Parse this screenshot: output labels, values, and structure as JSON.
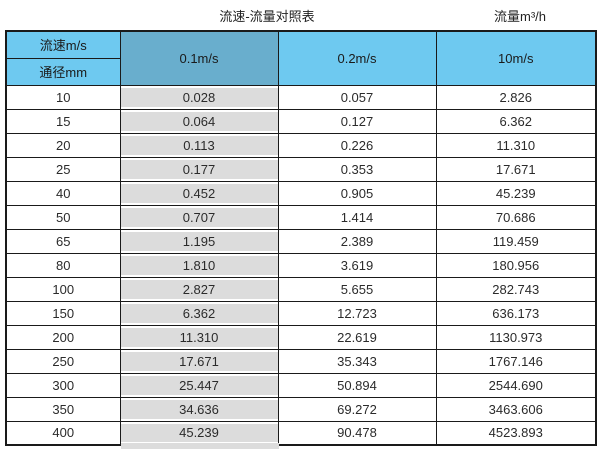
{
  "page": {
    "title_left": "流速-流量对照表",
    "title_right": "流量m³/h"
  },
  "table": {
    "corner": {
      "top": "流速m/s",
      "bottom": "通径mm"
    },
    "columns": [
      "0.1m/s",
      "0.2m/s",
      "10m/s"
    ],
    "rows": [
      {
        "dn": "10",
        "v01": "0.028",
        "v02": "0.057",
        "v10": "2.826"
      },
      {
        "dn": "15",
        "v01": "0.064",
        "v02": "0.127",
        "v10": "6.362"
      },
      {
        "dn": "20",
        "v01": "0.113",
        "v02": "0.226",
        "v10": "11.310"
      },
      {
        "dn": "25",
        "v01": "0.177",
        "v02": "0.353",
        "v10": "17.671"
      },
      {
        "dn": "40",
        "v01": "0.452",
        "v02": "0.905",
        "v10": "45.239"
      },
      {
        "dn": "50",
        "v01": "0.707",
        "v02": "1.414",
        "v10": "70.686"
      },
      {
        "dn": "65",
        "v01": "1.195",
        "v02": "2.389",
        "v10": "119.459"
      },
      {
        "dn": "80",
        "v01": "1.810",
        "v02": "3.619",
        "v10": "180.956"
      },
      {
        "dn": "100",
        "v01": "2.827",
        "v02": "5.655",
        "v10": "282.743"
      },
      {
        "dn": "150",
        "v01": "6.362",
        "v02": "12.723",
        "v10": "636.173"
      },
      {
        "dn": "200",
        "v01": "11.310",
        "v02": "22.619",
        "v10": "1130.973"
      },
      {
        "dn": "250",
        "v01": "17.671",
        "v02": "35.343",
        "v10": "1767.146"
      },
      {
        "dn": "300",
        "v01": "25.447",
        "v02": "50.894",
        "v10": "2544.690"
      },
      {
        "dn": "350",
        "v01": "34.636",
        "v02": "69.272",
        "v10": "3463.606"
      },
      {
        "dn": "400",
        "v01": "45.239",
        "v02": "90.478",
        "v10": "4523.893"
      }
    ]
  },
  "colors": {
    "header_blue": "#6EC9F0",
    "highlight_header_blue": "#69AECD",
    "highlight_column_gray": "#DCDCDC",
    "border": "#1A1A1A"
  }
}
